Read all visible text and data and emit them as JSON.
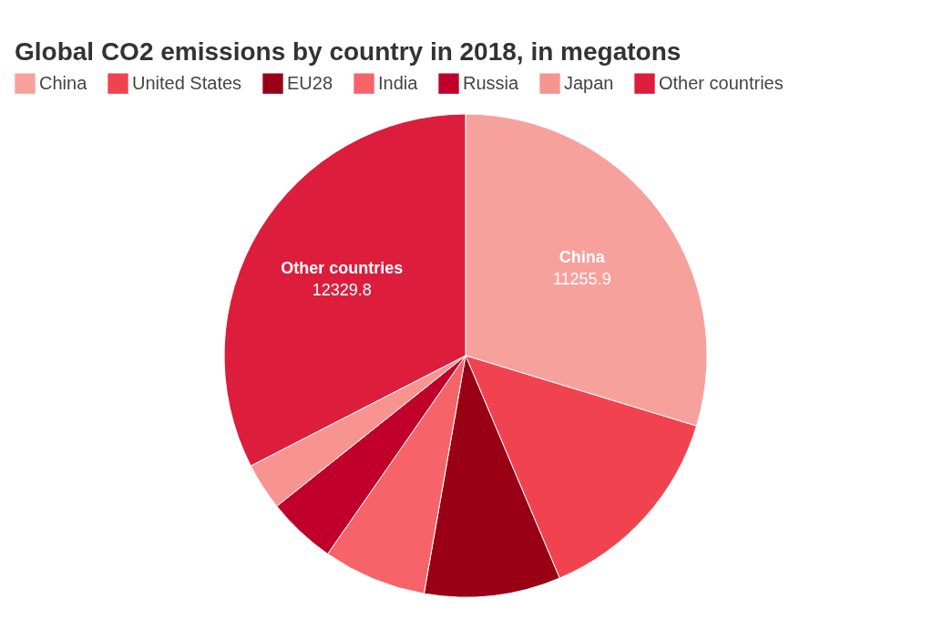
{
  "chart_data": {
    "type": "pie",
    "title": "Global CO2 emissions by country in 2018, in megatons",
    "categories": [
      "China",
      "United States",
      "EU28",
      "India",
      "Russia",
      "Japan",
      "Other countries"
    ],
    "values": [
      11255.9,
      5275.5,
      3456.6,
      2622.4,
      1748.1,
      1199.3,
      12329.8
    ],
    "colors": [
      "#f7a19d",
      "#f1434f",
      "#990015",
      "#f66369",
      "#c0002b",
      "#f89490",
      "#dc1e3c"
    ],
    "value_labels": [
      "11255.9",
      null,
      null,
      null,
      null,
      null,
      "12329.8"
    ],
    "legend": "top"
  }
}
